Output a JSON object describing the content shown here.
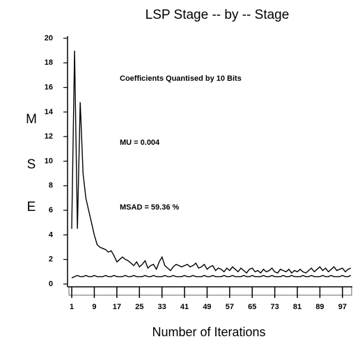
{
  "chart_data": {
    "type": "line",
    "title": "LSP Stage -- by -- Stage",
    "y_label_letters": [
      "M",
      "S",
      "E"
    ],
    "xlabel": "Number of Iterations",
    "annotations": [
      "Coefficients Quantised by 10 Bits",
      "MU = 0.004",
      "MSAD = 59.36 %"
    ],
    "x": [
      1,
      2,
      3,
      4,
      5,
      6,
      7,
      8,
      9,
      10,
      11,
      12,
      13,
      14,
      15,
      16,
      17,
      18,
      19,
      20,
      21,
      22,
      23,
      24,
      25,
      26,
      27,
      28,
      29,
      30,
      31,
      32,
      33,
      34,
      35,
      36,
      37,
      38,
      39,
      40,
      41,
      42,
      43,
      44,
      45,
      46,
      47,
      48,
      49,
      50,
      51,
      52,
      53,
      54,
      55,
      56,
      57,
      58,
      59,
      60,
      61,
      62,
      63,
      64,
      65,
      66,
      67,
      68,
      69,
      70,
      71,
      72,
      73,
      74,
      75,
      76,
      77,
      78,
      79,
      80,
      81,
      82,
      83,
      84,
      85,
      86,
      87,
      88,
      89,
      90,
      91,
      92,
      93,
      94,
      95,
      96,
      97,
      98,
      99,
      100
    ],
    "series": [
      {
        "color": "#000000",
        "values": [
          4.5,
          19,
          4.5,
          14.8,
          9,
          7,
          6,
          5,
          4,
          3.2,
          3,
          2.9,
          2.8,
          2.6,
          2.7,
          2.3,
          1.8,
          2,
          2.2,
          2,
          1.9,
          1.7,
          1.5,
          1.8,
          1.4,
          1.6,
          1.9,
          1.3,
          1.5,
          1.6,
          1.2,
          1.8,
          2.2,
          1.5,
          1.3,
          1.1,
          1.4,
          1.6,
          1.5,
          1.4,
          1.5,
          1.6,
          1.4,
          1.5,
          1.7,
          1.3,
          1.4,
          1.6,
          1.2,
          1.4,
          1.5,
          1.1,
          1.3,
          1.2,
          1,
          1.3,
          1.1,
          1.4,
          1.2,
          1,
          1.3,
          1.1,
          0.9,
          1.2,
          1.3,
          1,
          1.1,
          0.9,
          1.2,
          1,
          1.1,
          1.3,
          1,
          0.9,
          1.2,
          1.1,
          1,
          1.2,
          0.9,
          1.1,
          1,
          1.2,
          1,
          0.9,
          1.1,
          1.3,
          1,
          1.2,
          1.4,
          1.1,
          1.3,
          1,
          1.2,
          1.4,
          1.1,
          1.2,
          1.3,
          1,
          1.2,
          1.3
        ]
      },
      {
        "color": "#000000",
        "values": [
          0.5,
          0.6,
          0.7,
          0.6,
          0.6,
          0.7,
          0.6,
          0.6,
          0.7,
          0.6,
          0.6,
          0.6,
          0.7,
          0.6,
          0.6,
          0.7,
          0.6,
          0.6,
          0.6,
          0.7,
          0.6,
          0.6,
          0.7,
          0.6,
          0.6,
          0.6,
          0.7,
          0.6,
          0.6,
          0.7,
          0.6,
          0.6,
          0.6,
          0.7,
          0.6,
          0.6,
          0.7,
          0.6,
          0.6,
          0.6,
          0.7,
          0.6,
          0.6,
          0.7,
          0.6,
          0.6,
          0.6,
          0.7,
          0.6,
          0.6,
          0.7,
          0.6,
          0.6,
          0.6,
          0.7,
          0.6,
          0.6,
          0.7,
          0.6,
          0.6,
          0.6,
          0.7,
          0.6,
          0.6,
          0.7,
          0.6,
          0.6,
          0.6,
          0.7,
          0.6,
          0.6,
          0.7,
          0.6,
          0.6,
          0.6,
          0.7,
          0.6,
          0.6,
          0.7,
          0.6,
          0.6,
          0.6,
          0.7,
          0.6,
          0.6,
          0.7,
          0.6,
          0.6,
          0.6,
          0.7,
          0.6,
          0.6,
          0.7,
          0.6,
          0.6,
          0.6,
          0.7,
          0.6,
          0.6,
          0.7
        ]
      }
    ],
    "xlim": [
      0,
      100
    ],
    "xticks": [
      1,
      9,
      17,
      25,
      33,
      41,
      49,
      57,
      65,
      73,
      81,
      89,
      97
    ],
    "ylim": [
      0,
      20
    ],
    "yticks": [
      0,
      2,
      4,
      6,
      8,
      10,
      12,
      14,
      16,
      18,
      20
    ]
  }
}
